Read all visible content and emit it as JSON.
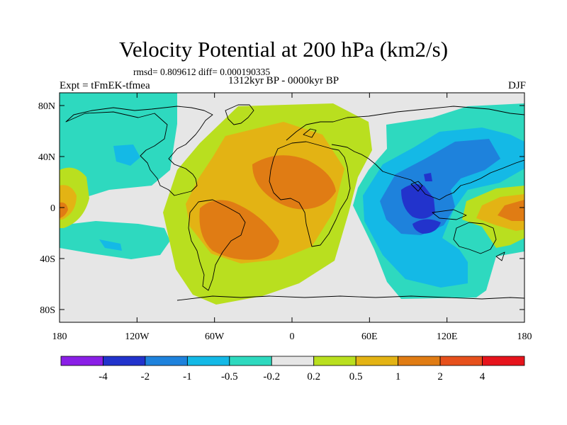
{
  "title": "Velocity Potential at 200 hPa (km2/s)",
  "stats_line": "rmsd= 0.809612 diff= 0.000190335",
  "period_line": "1312kyr BP - 0000kyr BP",
  "experiment_label": "Expt = tFmEK-tfmea",
  "season_label": "DJF",
  "chart_data": {
    "type": "contour-map",
    "variable": "velocity potential difference",
    "units": "km2/s",
    "projection": "cylindrical equidistant",
    "x_axis": {
      "range": [
        -180,
        180
      ],
      "ticks": [
        -180,
        -120,
        -60,
        0,
        60,
        120,
        180
      ],
      "tick_labels": [
        "180",
        "120W",
        "60W",
        "0",
        "60E",
        "120E",
        "180"
      ]
    },
    "y_axis": {
      "range": [
        -90,
        90
      ],
      "ticks": [
        80,
        40,
        0,
        -40,
        -80
      ],
      "tick_labels": [
        "80N",
        "40N",
        "0",
        "40S",
        "80S"
      ]
    },
    "colorbar": {
      "boundaries": [
        -4,
        -2,
        -1,
        -0.5,
        -0.2,
        0.2,
        0.5,
        1,
        2,
        4
      ],
      "labels": [
        "-4",
        "-2",
        "-1",
        "-0.5",
        "-0.2",
        "0.2",
        "0.5",
        "1",
        "2",
        "4"
      ],
      "colors": [
        "#8a1fe6",
        "#2233cc",
        "#1e82dc",
        "#14b9e6",
        "#2ed9bf",
        "#e6e6e6",
        "#b9df1f",
        "#e3b314",
        "#e07c14",
        "#e6501c",
        "#e6141c"
      ]
    },
    "features": [
      {
        "name": "positive center",
        "region": "South America",
        "lon": -45,
        "lat": -12,
        "level": "1 to 2"
      },
      {
        "name": "positive center",
        "region": "North Africa",
        "lon": 12,
        "lat": 25,
        "level": "1 to 2"
      },
      {
        "name": "positive center",
        "region": "central Pacific",
        "lon": 160,
        "lat": 5,
        "level": "1 to 2"
      },
      {
        "name": "negative center",
        "region": "Maritime Continent",
        "lon": 100,
        "lat": 0,
        "level": "-2 to -4"
      },
      {
        "name": "negative center",
        "region": "Indian Ocean",
        "lon": 95,
        "lat": -15,
        "level": "-2 to -4"
      }
    ]
  }
}
